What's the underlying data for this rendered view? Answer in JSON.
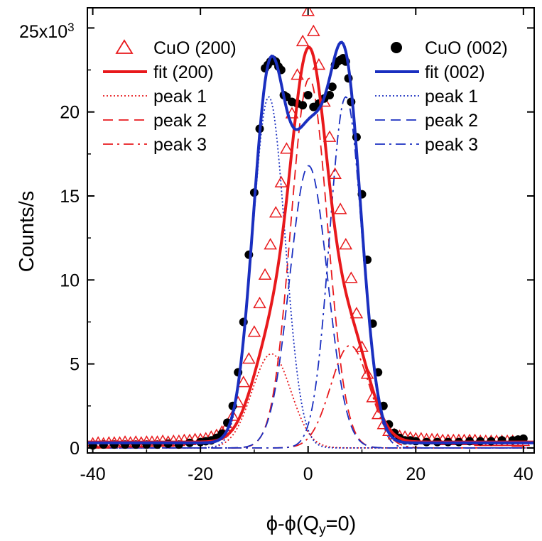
{
  "chart_data": {
    "type": "scatter",
    "title": "",
    "xlabel": "ϕ-ϕ(Q=0)",
    "xlabel_main": "ϕ-ϕ(Q",
    "xlabel_sub": "y",
    "xlabel_tail": "=0)",
    "ylabel": "Counts/s",
    "xlim": [
      -41,
      42
    ],
    "ylim": [
      -0.3,
      26.2
    ],
    "x_ticks": [
      -40,
      -20,
      0,
      20,
      40
    ],
    "x_tick_labels": [
      "-40",
      "-20",
      "0",
      "20",
      "40"
    ],
    "y_ticks": [
      0,
      5,
      10,
      15,
      20,
      25
    ],
    "y_tick_labels": [
      "0",
      "5",
      "10",
      "15",
      "20",
      ""
    ],
    "y_top_label": "25x10",
    "y_top_exp": "3",
    "grid": false,
    "legend_placement": "top-left and top-right",
    "colors": {
      "red": "#e8191c",
      "blue": "#1a2fc0",
      "black": "#000000"
    },
    "series": [
      {
        "name": "CuO (200)",
        "kind": "markers",
        "marker": "open-triangle",
        "color": "#e8191c",
        "x": [
          -40,
          -39,
          -38,
          -37,
          -36,
          -35,
          -34,
          -33,
          -32,
          -31,
          -30,
          -29,
          -28,
          -27,
          -26,
          -25,
          -24,
          -23,
          -22,
          -21,
          -20,
          -19,
          -18,
          -17,
          -16,
          -15,
          -14,
          -13,
          -12,
          -11,
          -10,
          -9,
          -8,
          -7,
          -6,
          -5,
          -4,
          -3,
          -2,
          -1,
          0,
          1,
          2,
          3,
          4,
          5,
          6,
          7,
          8,
          9,
          10,
          11,
          12,
          13,
          14,
          15,
          16,
          17,
          18,
          19,
          20,
          21,
          22,
          23,
          24,
          25,
          26,
          27,
          28,
          29,
          30,
          31,
          32,
          33,
          34,
          35,
          36,
          37,
          38,
          39,
          40
        ],
        "y": [
          0.25,
          0.3,
          0.25,
          0.3,
          0.3,
          0.3,
          0.35,
          0.3,
          0.35,
          0.3,
          0.35,
          0.35,
          0.35,
          0.4,
          0.35,
          0.4,
          0.4,
          0.45,
          0.45,
          0.5,
          0.5,
          0.55,
          0.65,
          0.75,
          0.95,
          1.3,
          1.9,
          2.7,
          3.9,
          5.3,
          6.9,
          8.6,
          10.3,
          12.1,
          14.0,
          15.8,
          17.8,
          19.9,
          22.2,
          24.2,
          26.0,
          24.8,
          22.8,
          20.6,
          18.5,
          16.3,
          14.2,
          12.1,
          10.1,
          8.0,
          6.0,
          4.4,
          3.0,
          2.0,
          1.4,
          1.0,
          0.8,
          0.7,
          0.65,
          0.6,
          0.55,
          0.55,
          0.5,
          0.5,
          0.5,
          0.45,
          0.45,
          0.45,
          0.45,
          0.45,
          0.45,
          0.45,
          0.4,
          0.4,
          0.4,
          0.4,
          0.4,
          0.4,
          0.4,
          0.35,
          0.4
        ]
      },
      {
        "name": "CuO (002)",
        "kind": "markers",
        "marker": "filled-circle",
        "color": "#000000",
        "x": [
          -40,
          -38,
          -36,
          -34,
          -32,
          -30,
          -28,
          -26,
          -24,
          -22,
          -20,
          -19,
          -18,
          -17,
          -16,
          -15,
          -14,
          -13,
          -12,
          -11,
          -10,
          -9,
          -8,
          -7.5,
          -7,
          -6.5,
          -6,
          -5.5,
          -5,
          -4.5,
          -4,
          -3,
          -2,
          -1,
          0,
          1,
          2,
          3,
          4,
          4.5,
          5,
          5.5,
          6,
          6.5,
          7,
          7.5,
          8,
          9,
          10,
          11,
          12,
          13,
          14,
          15,
          16,
          17,
          18,
          19,
          20,
          22,
          24,
          26,
          28,
          30,
          32,
          34,
          36,
          38,
          39,
          40
        ],
        "y": [
          0.15,
          0.2,
          0.2,
          0.2,
          0.2,
          0.2,
          0.2,
          0.25,
          0.2,
          0.3,
          0.35,
          0.4,
          0.45,
          0.6,
          0.85,
          1.5,
          2.5,
          4.5,
          7.5,
          11.5,
          15.2,
          19.0,
          22.6,
          22.8,
          23.0,
          23.1,
          23.0,
          22.7,
          22.5,
          21.0,
          20.9,
          20.6,
          20.5,
          20.4,
          21.0,
          20.3,
          20.5,
          20.8,
          21.0,
          21.5,
          22.8,
          23.0,
          23.1,
          23.2,
          23.0,
          22.0,
          20.6,
          18.5,
          15.1,
          11.2,
          7.4,
          4.5,
          2.5,
          1.4,
          0.9,
          0.6,
          0.45,
          0.45,
          0.4,
          0.35,
          0.35,
          0.35,
          0.35,
          0.4,
          0.4,
          0.4,
          0.45,
          0.45,
          0.5,
          0.55
        ]
      },
      {
        "name": "fit (200)",
        "kind": "fit",
        "color": "#e8191c",
        "dash": "solid",
        "baseline": 0.35
      },
      {
        "name": "peak 1",
        "kind": "component",
        "group": "200",
        "color": "#e8191c",
        "dash": "dotted",
        "center": -6.8,
        "height": 5.6,
        "sigma": 3.6
      },
      {
        "name": "peak 2",
        "kind": "component",
        "group": "200",
        "color": "#e8191c",
        "dash": "dashed",
        "center": 0.2,
        "height": 22.0,
        "sigma": 3.4
      },
      {
        "name": "peak 3",
        "kind": "component",
        "group": "200",
        "color": "#e8191c",
        "dash": "dashdot",
        "center": 7.8,
        "height": 6.1,
        "sigma": 3.6
      },
      {
        "name": "fit (002)",
        "kind": "fit",
        "color": "#1a2fc0",
        "dash": "solid",
        "baseline": 0.3
      },
      {
        "name": "peak 1",
        "kind": "component",
        "group": "002",
        "color": "#1a2fc0",
        "dash": "dotted",
        "center": -7.3,
        "height": 20.9,
        "sigma": 3.0
      },
      {
        "name": "peak 2",
        "kind": "component",
        "group": "002",
        "color": "#1a2fc0",
        "dash": "dashed",
        "center": 0.1,
        "height": 16.8,
        "sigma": 3.5
      },
      {
        "name": "peak 3",
        "kind": "component",
        "group": "002",
        "color": "#1a2fc0",
        "dash": "dashdot",
        "center": 7.0,
        "height": 20.9,
        "sigma": 3.0
      }
    ],
    "legend_left": [
      {
        "label": "CuO (200)",
        "symbol": "open-triangle",
        "color": "#e8191c"
      },
      {
        "label": "fit (200)",
        "symbol": "line-solid",
        "color": "#e8191c"
      },
      {
        "label": "peak 1",
        "symbol": "line-dotted",
        "color": "#e8191c"
      },
      {
        "label": "peak 2",
        "symbol": "line-dashed",
        "color": "#e8191c"
      },
      {
        "label": "peak 3",
        "symbol": "line-dashdot",
        "color": "#e8191c"
      }
    ],
    "legend_right": [
      {
        "label": "CuO (002)",
        "symbol": "filled-circle",
        "color": "#000000"
      },
      {
        "label": "fit (002)",
        "symbol": "line-solid",
        "color": "#1a2fc0"
      },
      {
        "label": "peak 1",
        "symbol": "line-dotted",
        "color": "#1a2fc0"
      },
      {
        "label": "peak 2",
        "symbol": "line-dashed",
        "color": "#1a2fc0"
      },
      {
        "label": "peak 3",
        "symbol": "line-dashdot",
        "color": "#1a2fc0"
      }
    ]
  }
}
